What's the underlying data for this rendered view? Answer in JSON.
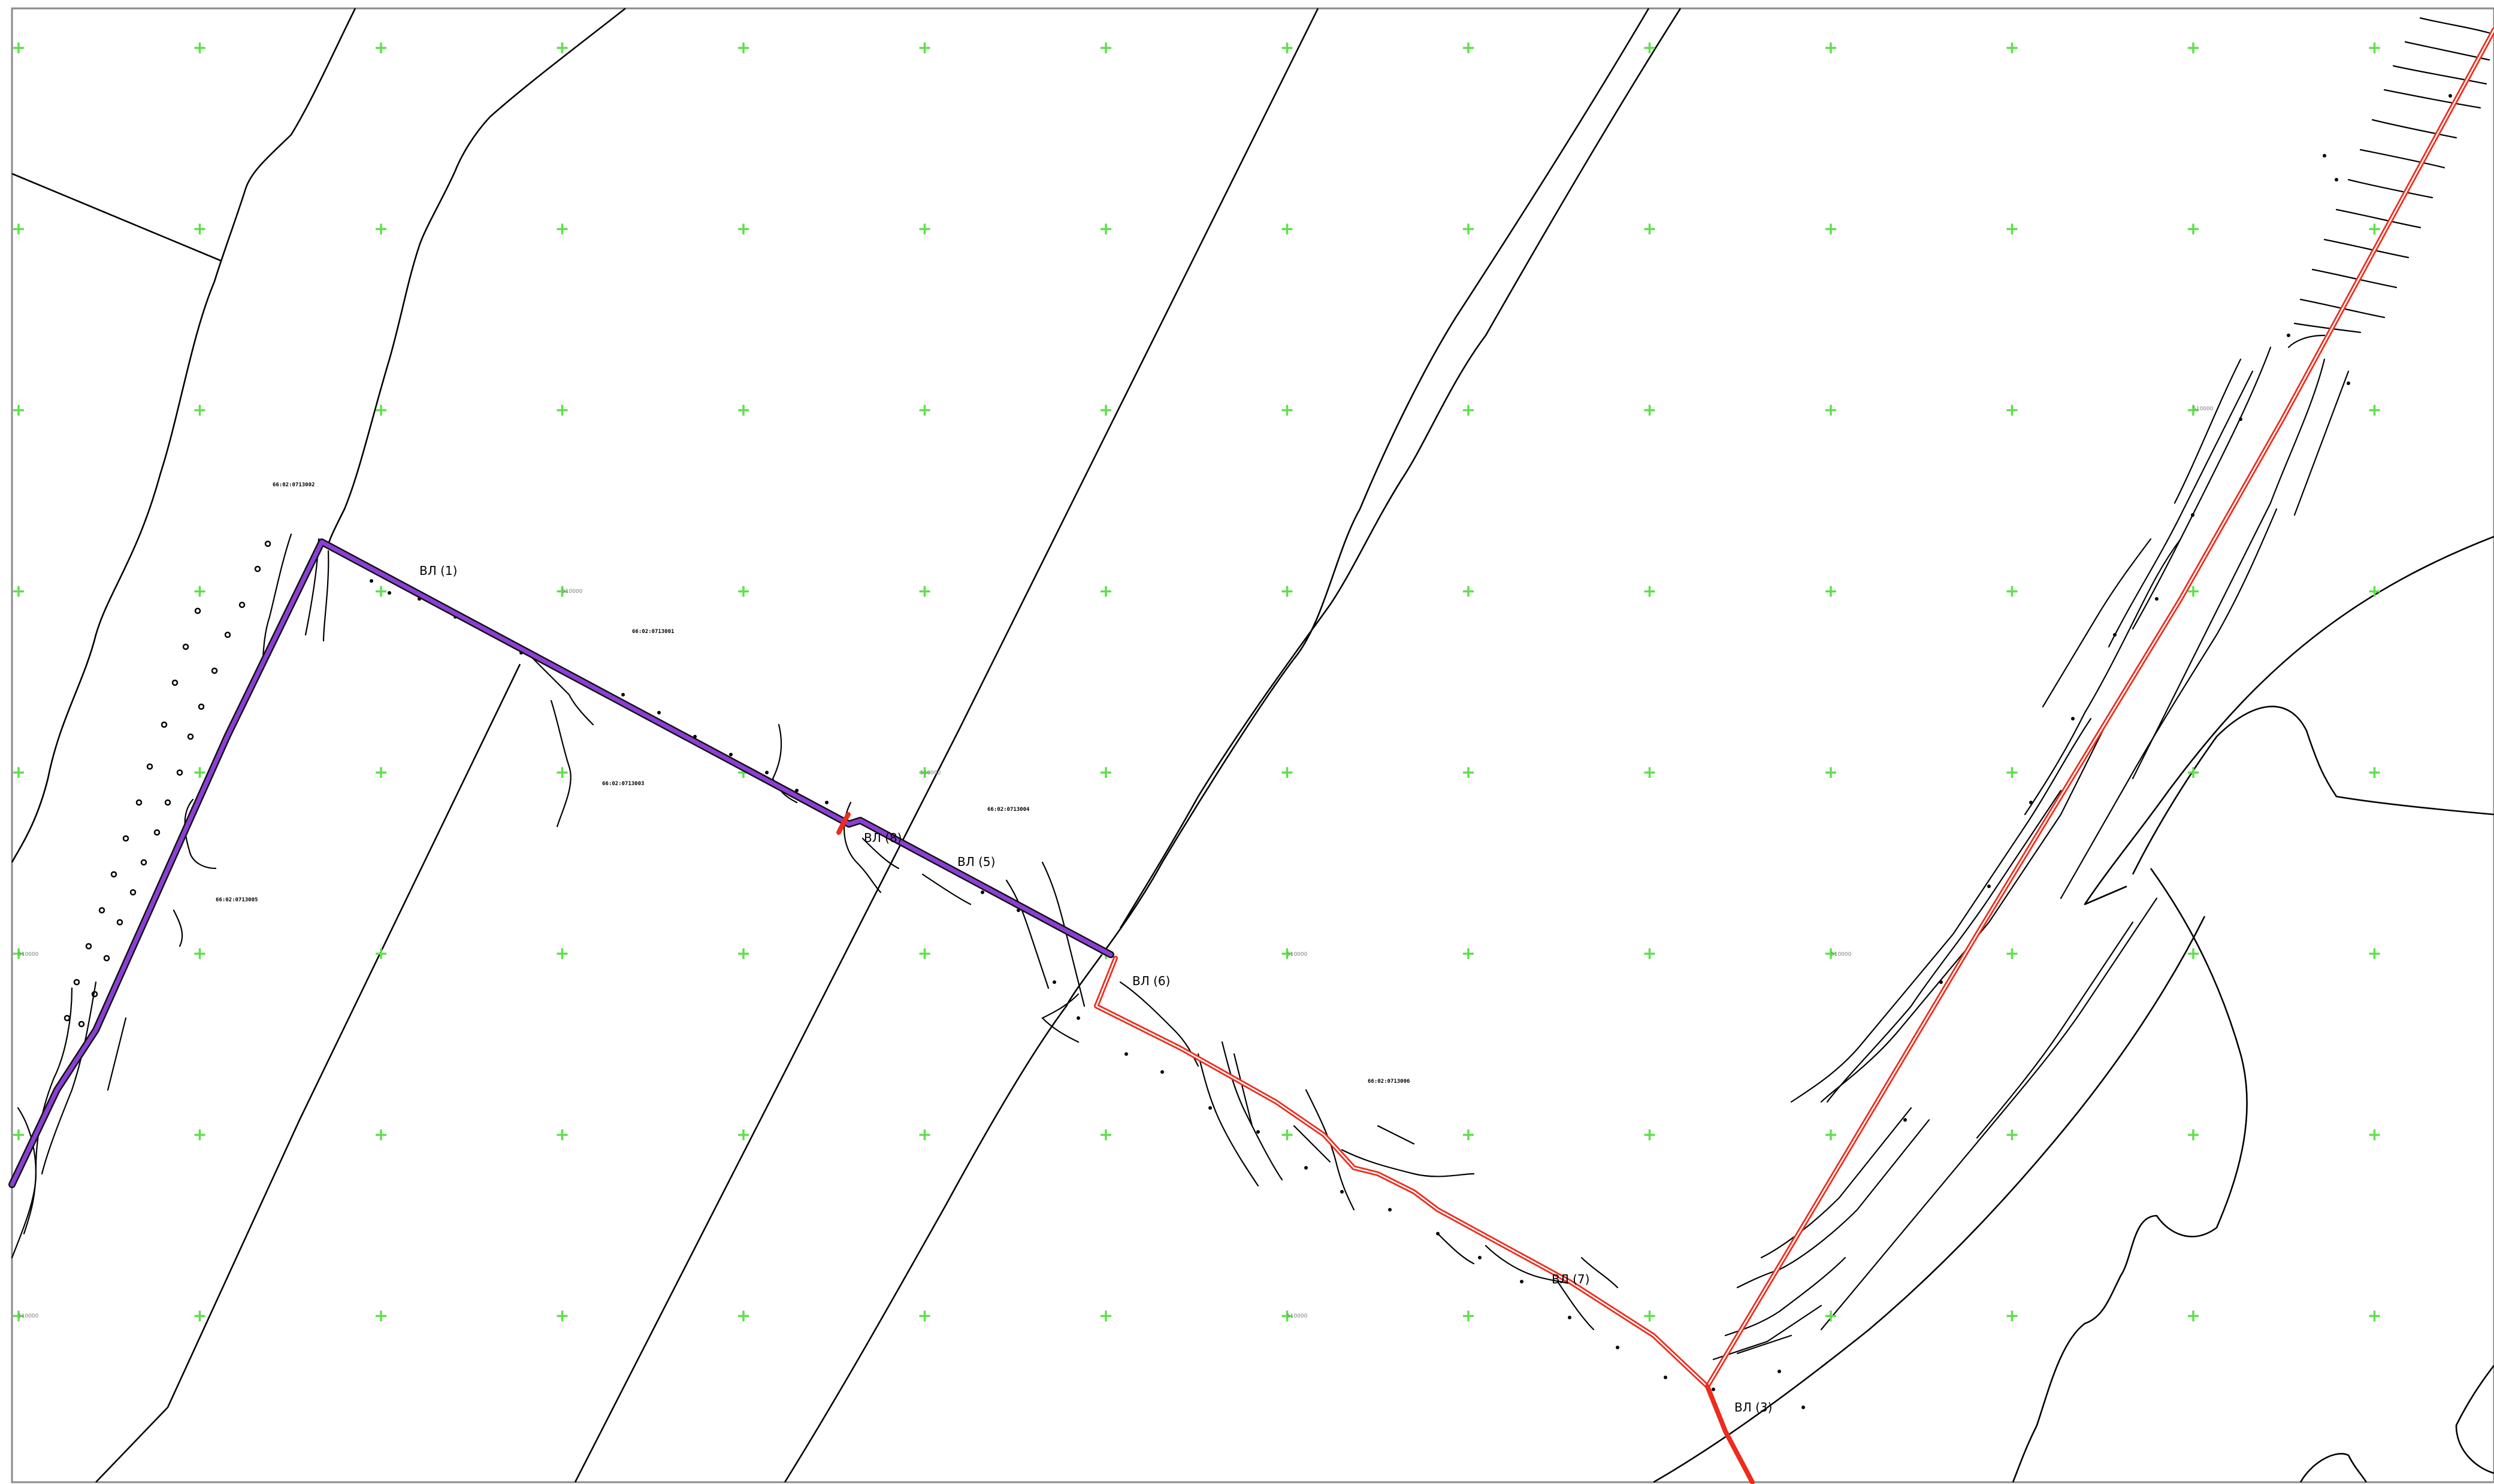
{
  "drawing": {
    "background": "#ffffff",
    "colors": {
      "grid": "#5ee04a",
      "route_purple": "#8b3fd6",
      "route_red": "#ef2b1b",
      "lines": "#000000"
    }
  },
  "vertex_labels": [
    {
      "id": "v1",
      "text": "ВЛ (1)"
    },
    {
      "id": "v5",
      "text": "ВЛ (5)"
    },
    {
      "id": "v6",
      "text": "ВЛ (6)"
    },
    {
      "id": "v7",
      "text": "ВЛ (7)"
    },
    {
      "id": "v8",
      "text": "ВЛ (8)"
    },
    {
      "id": "v3",
      "text": "ВЛ (3)"
    }
  ],
  "parcel_codes": [
    {
      "id": "p1",
      "text": "66:02:0713002"
    },
    {
      "id": "p2",
      "text": "66:02:0713001"
    },
    {
      "id": "p3",
      "text": "66:02:0713003"
    },
    {
      "id": "p4",
      "text": "66:02:0713004"
    },
    {
      "id": "p5",
      "text": "66:02:0713005"
    },
    {
      "id": "p6",
      "text": "66:02:0713006"
    }
  ],
  "grid_coord_labels": [
    {
      "id": "g1",
      "text": "510000"
    },
    {
      "id": "g2",
      "text": "510000"
    },
    {
      "id": "g3",
      "text": "510000"
    },
    {
      "id": "g4",
      "text": "510000"
    },
    {
      "id": "g5",
      "text": "510000"
    },
    {
      "id": "g6",
      "text": "510000"
    },
    {
      "id": "g7",
      "text": "510000"
    },
    {
      "id": "g8",
      "text": "510000"
    }
  ]
}
